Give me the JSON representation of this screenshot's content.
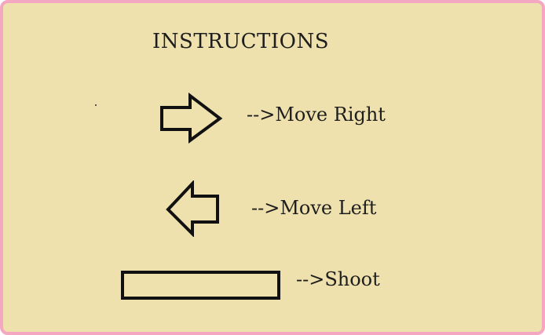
{
  "title": "INSTRUCTIONS",
  "controls": [
    {
      "icon": "right-arrow-key-icon",
      "label": "-->Move Right"
    },
    {
      "icon": "left-arrow-key-icon",
      "label": "-->Move Left"
    },
    {
      "icon": "spacebar-key-icon",
      "label": "-->Shoot"
    }
  ],
  "colors": {
    "background": "#efe1ad",
    "border": "#f4a7c0",
    "text": "#1e1e1e"
  }
}
